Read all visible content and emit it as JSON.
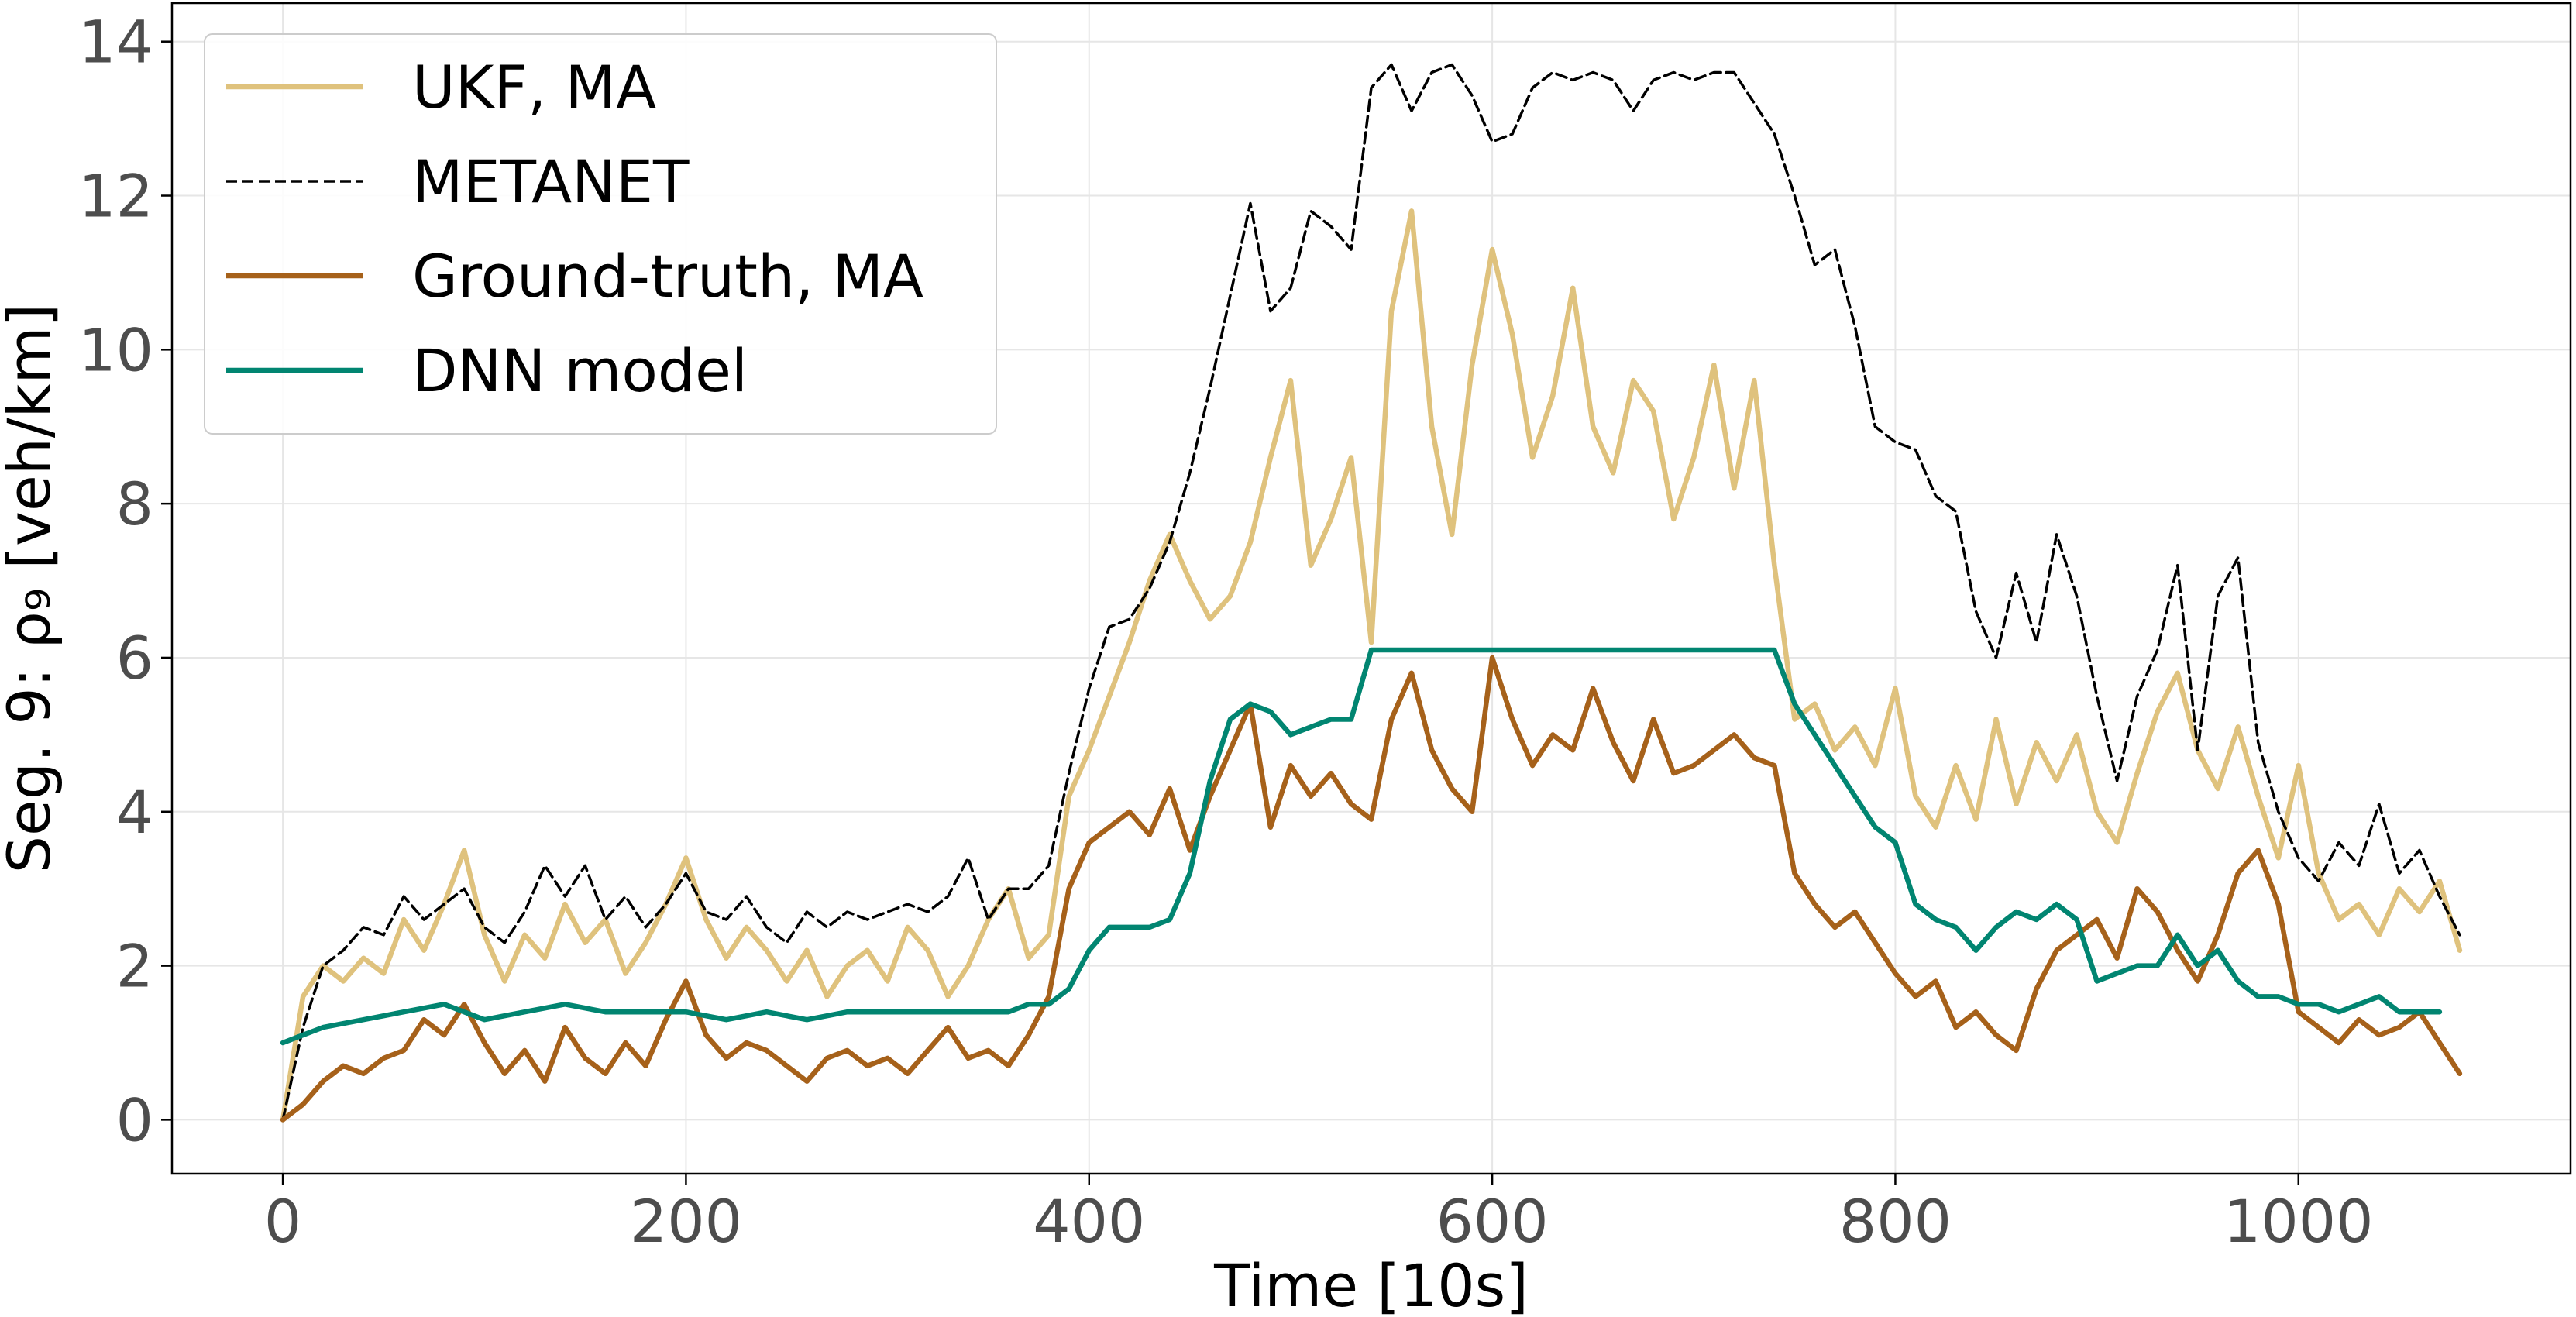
{
  "chart_data": {
    "type": "line",
    "title": "",
    "xlabel": "Time [10s]",
    "ylabel": "Seg. 9: ρ₉ [veh/km]",
    "xlim": [
      -55,
      1135
    ],
    "ylim": [
      -0.7,
      14.5
    ],
    "xticks": [
      0,
      200,
      400,
      600,
      800,
      1000
    ],
    "yticks": [
      0,
      2,
      4,
      6,
      8,
      10,
      12,
      14
    ],
    "grid": true,
    "legend_position": "top-left",
    "series": [
      {
        "name": "UKF, MA",
        "color": "#dfc27d",
        "style": "solid",
        "x": [
          0,
          10,
          20,
          30,
          40,
          50,
          60,
          70,
          80,
          90,
          100,
          110,
          120,
          130,
          140,
          150,
          160,
          170,
          180,
          190,
          200,
          210,
          220,
          230,
          240,
          250,
          260,
          270,
          280,
          290,
          300,
          310,
          320,
          330,
          340,
          350,
          360,
          370,
          380,
          390,
          400,
          410,
          420,
          430,
          440,
          450,
          460,
          470,
          480,
          490,
          500,
          510,
          520,
          530,
          540,
          550,
          560,
          570,
          580,
          590,
          600,
          610,
          620,
          630,
          640,
          650,
          660,
          670,
          680,
          690,
          700,
          710,
          720,
          730,
          740,
          750,
          760,
          770,
          780,
          790,
          800,
          810,
          820,
          830,
          840,
          850,
          860,
          870,
          880,
          890,
          900,
          910,
          920,
          930,
          940,
          950,
          960,
          970,
          980,
          990,
          1000,
          1010,
          1020,
          1030,
          1040,
          1050,
          1060,
          1070,
          1080
        ],
        "y": [
          0,
          1.6,
          2.0,
          1.8,
          2.1,
          1.9,
          2.6,
          2.2,
          2.8,
          3.5,
          2.4,
          1.8,
          2.4,
          2.1,
          2.8,
          2.3,
          2.6,
          1.9,
          2.3,
          2.8,
          3.4,
          2.6,
          2.1,
          2.5,
          2.2,
          1.8,
          2.2,
          1.6,
          2.0,
          2.2,
          1.8,
          2.5,
          2.2,
          1.6,
          2.0,
          2.6,
          3.0,
          2.1,
          2.4,
          4.2,
          4.8,
          5.5,
          6.2,
          7.0,
          7.6,
          7.0,
          6.5,
          6.8,
          7.5,
          8.6,
          9.6,
          7.2,
          7.8,
          8.6,
          6.2,
          10.5,
          11.8,
          9.0,
          7.6,
          9.8,
          11.3,
          10.2,
          8.6,
          9.4,
          10.8,
          9.0,
          8.4,
          9.6,
          9.2,
          7.8,
          8.6,
          9.8,
          8.2,
          9.6,
          7.2,
          5.2,
          5.4,
          4.8,
          5.1,
          4.6,
          5.6,
          4.2,
          3.8,
          4.6,
          3.9,
          5.2,
          4.1,
          4.9,
          4.4,
          5.0,
          4.0,
          3.6,
          4.5,
          5.3,
          5.8,
          4.8,
          4.3,
          5.1,
          4.2,
          3.4,
          4.6,
          3.2,
          2.6,
          2.8,
          2.4,
          3.0,
          2.7,
          3.1,
          2.2
        ]
      },
      {
        "name": "METANET",
        "color": "#000000",
        "style": "dashed",
        "x": [
          0,
          10,
          20,
          30,
          40,
          50,
          60,
          70,
          80,
          90,
          100,
          110,
          120,
          130,
          140,
          150,
          160,
          170,
          180,
          190,
          200,
          210,
          220,
          230,
          240,
          250,
          260,
          270,
          280,
          290,
          300,
          310,
          320,
          330,
          340,
          350,
          360,
          370,
          380,
          390,
          400,
          410,
          420,
          430,
          440,
          450,
          460,
          470,
          480,
          490,
          500,
          510,
          520,
          530,
          540,
          550,
          560,
          570,
          580,
          590,
          600,
          610,
          620,
          630,
          640,
          650,
          660,
          670,
          680,
          690,
          700,
          710,
          720,
          730,
          740,
          750,
          760,
          770,
          780,
          790,
          800,
          810,
          820,
          830,
          840,
          850,
          860,
          870,
          880,
          890,
          900,
          910,
          920,
          930,
          940,
          950,
          960,
          970,
          980,
          990,
          1000,
          1010,
          1020,
          1030,
          1040,
          1050,
          1060,
          1070,
          1080
        ],
        "y": [
          0,
          1.2,
          2.0,
          2.2,
          2.5,
          2.4,
          2.9,
          2.6,
          2.8,
          3.0,
          2.5,
          2.3,
          2.7,
          3.3,
          2.9,
          3.3,
          2.6,
          2.9,
          2.5,
          2.8,
          3.2,
          2.7,
          2.6,
          2.9,
          2.5,
          2.3,
          2.7,
          2.5,
          2.7,
          2.6,
          2.7,
          2.8,
          2.7,
          2.9,
          3.4,
          2.6,
          3.0,
          3.0,
          3.3,
          4.5,
          5.6,
          6.4,
          6.5,
          6.9,
          7.5,
          8.4,
          9.5,
          10.7,
          11.9,
          10.5,
          10.8,
          11.8,
          11.6,
          11.3,
          13.4,
          13.7,
          13.1,
          13.6,
          13.7,
          13.3,
          12.7,
          12.8,
          13.4,
          13.6,
          13.5,
          13.6,
          13.5,
          13.1,
          13.5,
          13.6,
          13.5,
          13.6,
          13.6,
          13.2,
          12.8,
          12.0,
          11.1,
          11.3,
          10.3,
          9.0,
          8.8,
          8.7,
          8.1,
          7.9,
          6.6,
          6.0,
          7.1,
          6.2,
          7.6,
          6.8,
          5.5,
          4.4,
          5.5,
          6.1,
          7.2,
          4.8,
          6.8,
          7.3,
          4.9,
          4.0,
          3.4,
          3.1,
          3.6,
          3.3,
          4.1,
          3.2,
          3.5,
          2.9,
          2.4
        ]
      },
      {
        "name": "Ground-truth, MA",
        "color": "#a6611a",
        "style": "solid",
        "x": [
          0,
          10,
          20,
          30,
          40,
          50,
          60,
          70,
          80,
          90,
          100,
          110,
          120,
          130,
          140,
          150,
          160,
          170,
          180,
          190,
          200,
          210,
          220,
          230,
          240,
          250,
          260,
          270,
          280,
          290,
          300,
          310,
          320,
          330,
          340,
          350,
          360,
          370,
          380,
          390,
          400,
          410,
          420,
          430,
          440,
          450,
          460,
          470,
          480,
          490,
          500,
          510,
          520,
          530,
          540,
          550,
          560,
          570,
          580,
          590,
          600,
          610,
          620,
          630,
          640,
          650,
          660,
          670,
          680,
          690,
          700,
          710,
          720,
          730,
          740,
          750,
          760,
          770,
          780,
          790,
          800,
          810,
          820,
          830,
          840,
          850,
          860,
          870,
          880,
          890,
          900,
          910,
          920,
          930,
          940,
          950,
          960,
          970,
          980,
          990,
          1000,
          1010,
          1020,
          1030,
          1040,
          1050,
          1060,
          1070,
          1080
        ],
        "y": [
          0,
          0.2,
          0.5,
          0.7,
          0.6,
          0.8,
          0.9,
          1.3,
          1.1,
          1.5,
          1.0,
          0.6,
          0.9,
          0.5,
          1.2,
          0.8,
          0.6,
          1.0,
          0.7,
          1.3,
          1.8,
          1.1,
          0.8,
          1.0,
          0.9,
          0.7,
          0.5,
          0.8,
          0.9,
          0.7,
          0.8,
          0.6,
          0.9,
          1.2,
          0.8,
          0.9,
          0.7,
          1.1,
          1.6,
          3.0,
          3.6,
          3.8,
          4.0,
          3.7,
          4.3,
          3.5,
          4.2,
          4.8,
          5.4,
          3.8,
          4.6,
          4.2,
          4.5,
          4.1,
          3.9,
          5.2,
          5.8,
          4.8,
          4.3,
          4.0,
          6.0,
          5.2,
          4.6,
          5.0,
          4.8,
          5.6,
          4.9,
          4.4,
          5.2,
          4.5,
          4.6,
          4.8,
          5.0,
          4.7,
          4.6,
          3.2,
          2.8,
          2.5,
          2.7,
          2.3,
          1.9,
          1.6,
          1.8,
          1.2,
          1.4,
          1.1,
          0.9,
          1.7,
          2.2,
          2.4,
          2.6,
          2.1,
          3.0,
          2.7,
          2.2,
          1.8,
          2.4,
          3.2,
          3.5,
          2.8,
          1.4,
          1.2,
          1.0,
          1.3,
          1.1,
          1.2,
          1.4,
          1.0,
          0.6
        ]
      },
      {
        "name": "DNN model",
        "color": "#018571",
        "style": "solid",
        "x": [
          0,
          20,
          40,
          60,
          80,
          100,
          120,
          140,
          160,
          180,
          200,
          220,
          240,
          260,
          280,
          300,
          320,
          340,
          360,
          370,
          380,
          390,
          400,
          410,
          420,
          430,
          440,
          450,
          460,
          470,
          480,
          490,
          500,
          510,
          520,
          530,
          540,
          550,
          560,
          570,
          580,
          590,
          600,
          610,
          620,
          630,
          640,
          650,
          660,
          670,
          680,
          690,
          700,
          710,
          720,
          730,
          740,
          750,
          760,
          770,
          780,
          790,
          800,
          810,
          820,
          830,
          840,
          850,
          860,
          870,
          880,
          890,
          900,
          910,
          920,
          930,
          940,
          950,
          960,
          970,
          980,
          990,
          1000,
          1010,
          1020,
          1030,
          1040,
          1050,
          1060,
          1070
        ],
        "y": [
          1.0,
          1.2,
          1.3,
          1.4,
          1.5,
          1.3,
          1.4,
          1.5,
          1.4,
          1.4,
          1.4,
          1.3,
          1.4,
          1.3,
          1.4,
          1.4,
          1.4,
          1.4,
          1.4,
          1.5,
          1.5,
          1.7,
          2.2,
          2.5,
          2.5,
          2.5,
          2.6,
          3.2,
          4.4,
          5.2,
          5.4,
          5.3,
          5.0,
          5.1,
          5.2,
          5.2,
          6.1,
          6.1,
          6.1,
          6.1,
          6.1,
          6.1,
          6.1,
          6.1,
          6.1,
          6.1,
          6.1,
          6.1,
          6.1,
          6.1,
          6.1,
          6.1,
          6.1,
          6.1,
          6.1,
          6.1,
          6.1,
          5.4,
          5.0,
          4.6,
          4.2,
          3.8,
          3.6,
          2.8,
          2.6,
          2.5,
          2.2,
          2.5,
          2.7,
          2.6,
          2.8,
          2.6,
          1.8,
          1.9,
          2.0,
          2.0,
          2.4,
          2.0,
          2.2,
          1.8,
          1.6,
          1.6,
          1.5,
          1.5,
          1.4,
          1.5,
          1.6,
          1.4,
          1.4,
          1.4
        ]
      }
    ]
  }
}
